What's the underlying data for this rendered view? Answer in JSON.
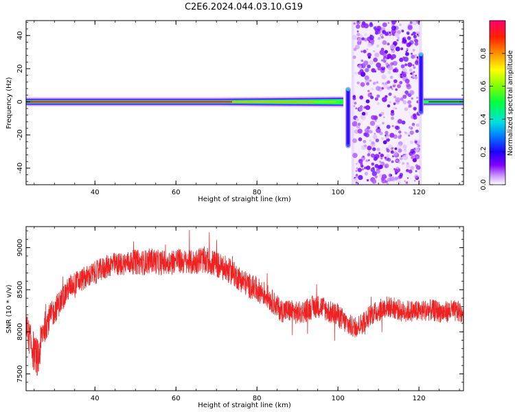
{
  "figure": {
    "title": "C2E6.2024.044.03.10.G19"
  },
  "chart_data": [
    {
      "type": "heatmap",
      "xlabel": "Height of straight line (km)",
      "ylabel": "Frequency (Hz)",
      "xlim": [
        23,
        131
      ],
      "ylim": [
        -50,
        49
      ],
      "x_ticks": [
        40,
        60,
        80,
        100,
        120
      ],
      "y_ticks": [
        -40,
        -20,
        0,
        20,
        40
      ],
      "x_tick_labels": [
        "40",
        "60",
        "80",
        "100",
        "120"
      ],
      "y_tick_labels": [
        "-40",
        "-20",
        "0",
        "20",
        "40"
      ],
      "grid": false,
      "colorbar": {
        "label": "Normalized spectral amplitude",
        "range": [
          0,
          1
        ],
        "ticks": [
          0.0,
          0.2,
          0.4,
          0.6,
          0.8
        ],
        "tick_labels": [
          "0.0",
          "0.2",
          "0.4",
          "0.6",
          "0.8"
        ],
        "colormap": "rainbow",
        "colors": [
          "#ffffff",
          "#c080ff",
          "#6000ff",
          "#0000ff",
          "#00e5ff",
          "#00ff40",
          "#ffff00",
          "#ff8000",
          "#ff0060"
        ]
      },
      "features": {
        "carrier_line": {
          "x": [
            23,
            103
          ],
          "freq": 0,
          "peak_amplitude": 0.9
        },
        "noise_band": {
          "x": [
            104,
            120
          ],
          "freq": [
            -50,
            49
          ]
        },
        "edge_features": [
          {
            "x": 102.5,
            "freq": [
              -28,
              9
            ]
          },
          {
            "x": 120.5,
            "freq": [
              -8,
              30
            ]
          }
        ]
      }
    },
    {
      "type": "line",
      "xlabel": "Height of straight line (km)",
      "ylabel": "SNR (10 * v/v)",
      "xlim": [
        23,
        131
      ],
      "ylim": [
        7300,
        9250
      ],
      "x_ticks": [
        40,
        60,
        80,
        100,
        120
      ],
      "y_ticks": [
        7500,
        8000,
        8500,
        9000
      ],
      "x_tick_labels": [
        "40",
        "60",
        "80",
        "100",
        "120"
      ],
      "y_tick_labels": [
        "7500",
        "8000",
        "8500",
        "9000"
      ],
      "grid": false,
      "series": [
        {
          "color": "#ee2222",
          "x": [
            23,
            24,
            25,
            26,
            27,
            28,
            30,
            32,
            34,
            36,
            38,
            40,
            42,
            44,
            46,
            48,
            50,
            52,
            54,
            56,
            58,
            60,
            62,
            64,
            66,
            68,
            70,
            72,
            74,
            76,
            78,
            80,
            82,
            84,
            86,
            88,
            90,
            92,
            94,
            96,
            98,
            100,
            102,
            104,
            106,
            108,
            110,
            112,
            114,
            116,
            118,
            120,
            122,
            124,
            126,
            128,
            131
          ],
          "y": [
            8050,
            7900,
            7750,
            7650,
            8000,
            8100,
            8250,
            8400,
            8550,
            8600,
            8650,
            8700,
            8750,
            8800,
            8800,
            8820,
            8830,
            8820,
            8850,
            8820,
            8830,
            8850,
            8830,
            8820,
            8860,
            8840,
            8800,
            8750,
            8700,
            8620,
            8550,
            8500,
            8450,
            8350,
            8250,
            8250,
            8220,
            8250,
            8300,
            8300,
            8230,
            8200,
            8100,
            8050,
            8100,
            8200,
            8250,
            8300,
            8280,
            8240,
            8250,
            8240,
            8260,
            8250,
            8230,
            8250,
            8230
          ],
          "noise": [
            200,
            200,
            250,
            250,
            200,
            180,
            160,
            150,
            140,
            140,
            140,
            140,
            140,
            140,
            140,
            140,
            150,
            150,
            150,
            150,
            150,
            150,
            150,
            150,
            160,
            160,
            160,
            160,
            150,
            150,
            150,
            150,
            150,
            140,
            140,
            140,
            140,
            140,
            140,
            140,
            140,
            140,
            140,
            130,
            130,
            130,
            130,
            130,
            130,
            130,
            130,
            130,
            130,
            130,
            130,
            130,
            130
          ]
        }
      ]
    }
  ]
}
